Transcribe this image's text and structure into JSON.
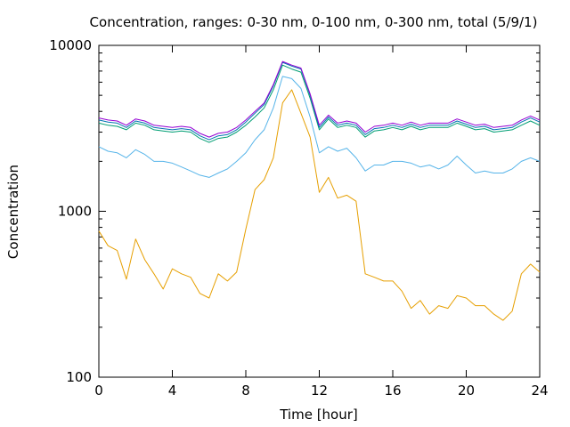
{
  "chart_data": {
    "type": "line",
    "title": "Concentration, ranges: 0-30 nm, 0-100 nm, 0-300 nm, total (5/9/1)",
    "xlabel": "Time [hour]",
    "ylabel": "Concentration",
    "xlim": [
      0,
      24
    ],
    "ylim": [
      100,
      10000
    ],
    "yscale": "log",
    "grid": false,
    "legend": "none",
    "x_ticks": [
      "0",
      "4",
      "8",
      "12",
      "16",
      "20",
      "24"
    ],
    "y_ticks": [
      "100",
      "1000",
      "10000"
    ],
    "x": [
      0,
      0.5,
      1,
      1.5,
      2,
      2.5,
      3,
      3.5,
      4,
      4.5,
      5,
      5.5,
      6,
      6.5,
      7,
      7.5,
      8,
      8.5,
      9,
      9.5,
      10,
      10.5,
      11,
      11.5,
      12,
      12.5,
      13,
      13.5,
      14,
      14.5,
      15,
      15.5,
      16,
      16.5,
      17,
      17.5,
      18,
      18.5,
      19,
      19.5,
      20,
      20.5,
      21,
      21.5,
      22,
      22.5,
      23,
      23.5,
      24
    ],
    "series": [
      {
        "color": "#e69f00",
        "values": [
          760,
          620,
          580,
          390,
          680,
          510,
          420,
          340,
          450,
          420,
          400,
          320,
          300,
          420,
          380,
          430,
          780,
          1350,
          1550,
          2100,
          4500,
          5400,
          3900,
          2800,
          1300,
          1600,
          1200,
          1250,
          1150,
          420,
          400,
          380,
          380,
          330,
          260,
          290,
          240,
          270,
          260,
          310,
          300,
          270,
          270,
          240,
          220,
          250,
          420,
          480,
          430
        ]
      },
      {
        "color": "#56b4e9",
        "values": [
          2450,
          2300,
          2250,
          2100,
          2350,
          2200,
          2000,
          2000,
          1950,
          1850,
          1750,
          1650,
          1600,
          1700,
          1800,
          2000,
          2250,
          2700,
          3100,
          4200,
          6500,
          6300,
          5500,
          3700,
          2250,
          2450,
          2300,
          2400,
          2100,
          1750,
          1900,
          1900,
          2000,
          2000,
          1950,
          1850,
          1900,
          1800,
          1900,
          2150,
          1900,
          1700,
          1750,
          1700,
          1700,
          1800,
          2000,
          2100,
          2000
        ]
      },
      {
        "color": "#009e73",
        "values": [
          3400,
          3300,
          3250,
          3100,
          3400,
          3300,
          3100,
          3050,
          3000,
          3050,
          3000,
          2750,
          2600,
          2750,
          2800,
          3000,
          3300,
          3700,
          4200,
          5400,
          7600,
          7200,
          6900,
          4800,
          3100,
          3600,
          3200,
          3300,
          3200,
          2800,
          3050,
          3100,
          3200,
          3100,
          3250,
          3100,
          3200,
          3200,
          3200,
          3400,
          3250,
          3100,
          3150,
          3000,
          3050,
          3100,
          3300,
          3500,
          3300
        ]
      },
      {
        "color": "#0072b2",
        "values": [
          3550,
          3450,
          3400,
          3200,
          3500,
          3400,
          3200,
          3150,
          3100,
          3150,
          3100,
          2850,
          2700,
          2850,
          2900,
          3100,
          3450,
          3900,
          4400,
          5700,
          7900,
          7500,
          7200,
          5000,
          3200,
          3700,
          3300,
          3400,
          3300,
          2900,
          3150,
          3200,
          3300,
          3200,
          3350,
          3200,
          3300,
          3300,
          3300,
          3500,
          3350,
          3200,
          3250,
          3100,
          3150,
          3200,
          3450,
          3650,
          3450
        ]
      },
      {
        "color": "#9400d3",
        "values": [
          3650,
          3550,
          3500,
          3300,
          3600,
          3500,
          3300,
          3250,
          3200,
          3250,
          3200,
          2950,
          2800,
          2950,
          3000,
          3200,
          3550,
          4000,
          4500,
          5800,
          8000,
          7600,
          7300,
          5100,
          3300,
          3800,
          3400,
          3500,
          3400,
          3000,
          3250,
          3300,
          3400,
          3300,
          3450,
          3300,
          3400,
          3400,
          3400,
          3600,
          3450,
          3300,
          3350,
          3200,
          3250,
          3300,
          3550,
          3750,
          3550
        ]
      }
    ]
  }
}
